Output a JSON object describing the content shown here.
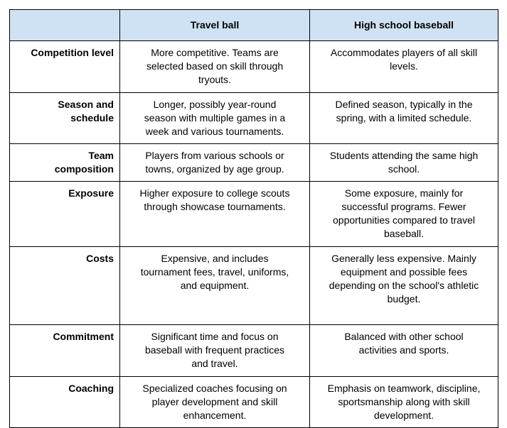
{
  "colors": {
    "header_background": "#cfe2f3",
    "border": "#000000",
    "text": "#000000",
    "page_background": "#ffffff"
  },
  "table": {
    "headers": [
      "",
      "Travel ball",
      "High school baseball"
    ],
    "rows": [
      {
        "label": "Competition level",
        "travel_ball": "More competitive. Teams are\nselected based on skill through\ntryouts.",
        "high_school": "Accommodates players of all skill\nlevels."
      },
      {
        "label": "Season and\nschedule",
        "travel_ball": "Longer, possibly year-round\nseason with multiple games in a\nweek and various tournaments.",
        "high_school": "Defined season, typically in the\nspring, with a limited schedule."
      },
      {
        "label": "Team\ncomposition",
        "travel_ball": "Players from various schools or\ntowns, organized by age group.",
        "high_school": "Students attending the same high\nschool."
      },
      {
        "label": "Exposure",
        "travel_ball": "Higher exposure to college scouts\nthrough showcase tournaments.",
        "high_school": "Some exposure, mainly for\nsuccessful programs. Fewer\nopportunities compared to travel\nbaseball."
      },
      {
        "label": "Costs",
        "travel_ball": "Expensive, and includes\ntournament fees, travel, uniforms,\nand equipment.",
        "high_school": "Generally less expensive. Mainly\nequipment and possible fees\ndepending on the school's athletic\nbudget."
      },
      {
        "label": "Commitment",
        "travel_ball": "Significant time and focus on\nbaseball with frequent practices\nand travel.",
        "high_school": "Balanced with other school\nactivities and sports."
      },
      {
        "label": "Coaching",
        "travel_ball": "Specialized coaches focusing on\nplayer development and skill\nenhancement.",
        "high_school": "Emphasis on teamwork, discipline,\nsportsmanship along with skill\ndevelopment."
      }
    ]
  }
}
